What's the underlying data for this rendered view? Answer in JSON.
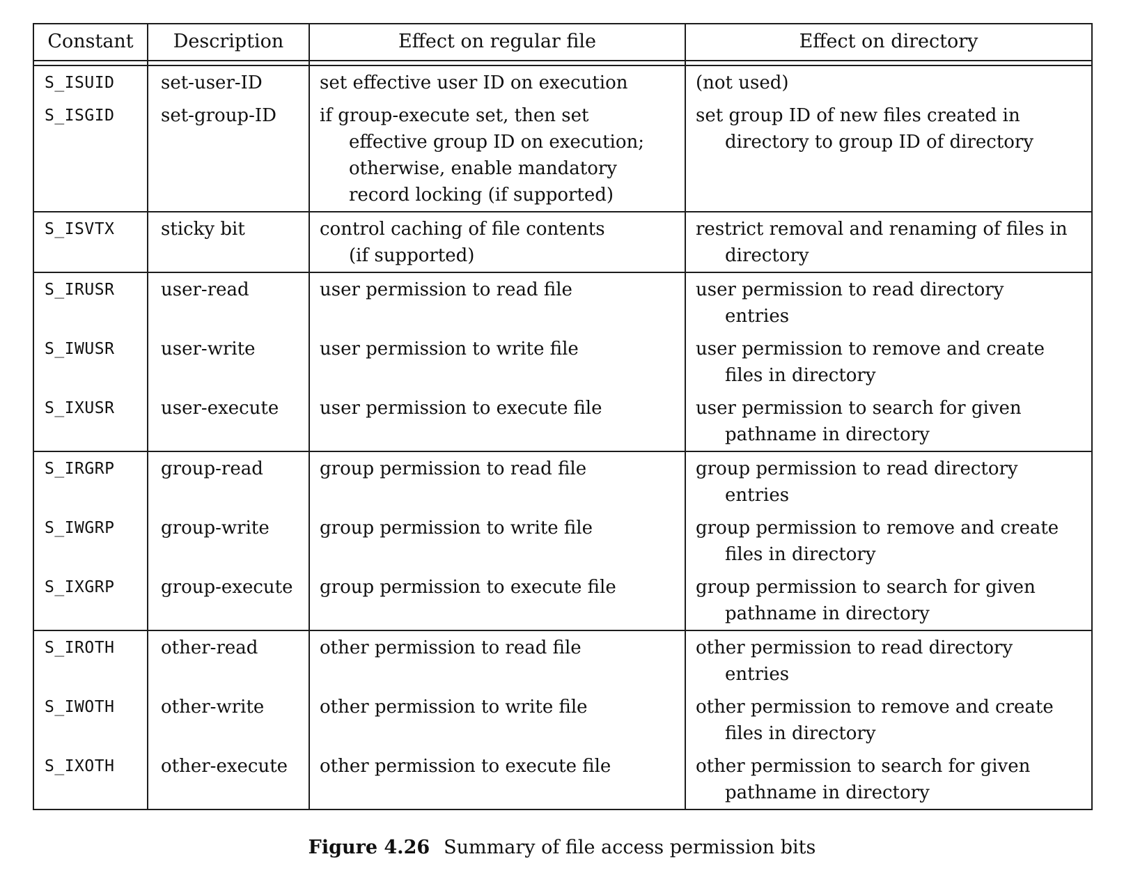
{
  "table": {
    "headers": [
      "Constant",
      "Description",
      "Effect on regular file",
      "Effect on directory"
    ],
    "groups": [
      {
        "rows": [
          {
            "constant": "S_ISUID",
            "description": "set-user-ID",
            "regular_file": "set effective user ID on execution",
            "directory": "(not used)"
          },
          {
            "constant": "S_ISGID",
            "description": "set-group-ID",
            "regular_file": "if group-execute set, then set\neffective group ID on execution;\notherwise, enable mandatory\nrecord locking (if supported)",
            "directory": "set group ID of new files created in\ndirectory to group ID of directory"
          }
        ]
      },
      {
        "rows": [
          {
            "constant": "S_ISVTX",
            "description": "sticky bit",
            "regular_file": "control caching of file contents\n(if supported)",
            "directory": "restrict removal and renaming of files in\ndirectory"
          }
        ]
      },
      {
        "rows": [
          {
            "constant": "S_IRUSR",
            "description": "user-read",
            "regular_file": "user permission to read file",
            "directory": "user permission to read directory\nentries"
          },
          {
            "constant": "S_IWUSR",
            "description": "user-write",
            "regular_file": "user permission to write file",
            "directory": "user permission to remove and create\nfiles in directory"
          },
          {
            "constant": "S_IXUSR",
            "description": "user-execute",
            "regular_file": "user permission to execute file",
            "directory": "user permission to search for given\npathname in directory"
          }
        ]
      },
      {
        "rows": [
          {
            "constant": "S_IRGRP",
            "description": "group-read",
            "regular_file": "group permission to read file",
            "directory": "group permission to read directory\nentries"
          },
          {
            "constant": "S_IWGRP",
            "description": "group-write",
            "regular_file": "group permission to write file",
            "directory": "group permission to remove and create\nfiles in directory"
          },
          {
            "constant": "S_IXGRP",
            "description": "group-execute",
            "regular_file": "group permission to execute file",
            "directory": "group permission to search for given\npathname in directory"
          }
        ]
      },
      {
        "rows": [
          {
            "constant": "S_IROTH",
            "description": "other-read",
            "regular_file": "other permission to read file",
            "directory": "other permission to read directory\nentries"
          },
          {
            "constant": "S_IWOTH",
            "description": "other-write",
            "regular_file": "other permission to write file",
            "directory": "other permission to remove and create\nfiles in directory"
          },
          {
            "constant": "S_IXOTH",
            "description": "other-execute",
            "regular_file": "other permission to execute file",
            "directory": "other permission to search for given\npathname in directory"
          }
        ]
      }
    ]
  },
  "caption": {
    "label": "Figure 4.26",
    "text": "Summary of file access permission bits"
  }
}
